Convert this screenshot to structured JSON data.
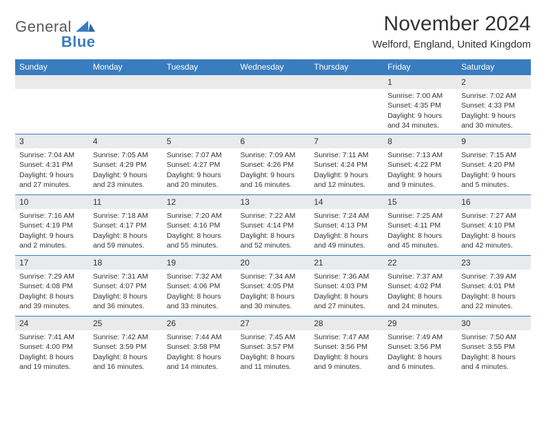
{
  "brand": {
    "name1": "General",
    "name2": "Blue"
  },
  "title": "November 2024",
  "subtitle": "Welford, England, United Kingdom",
  "colors": {
    "header_bg": "#3a7dbf",
    "header_fg": "#ffffff",
    "daynum_bg": "#e9eaeb",
    "border": "#3a7dbf",
    "text": "#333333"
  },
  "day_headers": [
    "Sunday",
    "Monday",
    "Tuesday",
    "Wednesday",
    "Thursday",
    "Friday",
    "Saturday"
  ],
  "weeks": [
    [
      {
        "blank": true
      },
      {
        "blank": true
      },
      {
        "blank": true
      },
      {
        "blank": true
      },
      {
        "blank": true
      },
      {
        "n": "1",
        "sr": "Sunrise: 7:00 AM",
        "ss": "Sunset: 4:35 PM",
        "dl": "Daylight: 9 hours and 34 minutes."
      },
      {
        "n": "2",
        "sr": "Sunrise: 7:02 AM",
        "ss": "Sunset: 4:33 PM",
        "dl": "Daylight: 9 hours and 30 minutes."
      }
    ],
    [
      {
        "n": "3",
        "sr": "Sunrise: 7:04 AM",
        "ss": "Sunset: 4:31 PM",
        "dl": "Daylight: 9 hours and 27 minutes."
      },
      {
        "n": "4",
        "sr": "Sunrise: 7:05 AM",
        "ss": "Sunset: 4:29 PM",
        "dl": "Daylight: 9 hours and 23 minutes."
      },
      {
        "n": "5",
        "sr": "Sunrise: 7:07 AM",
        "ss": "Sunset: 4:27 PM",
        "dl": "Daylight: 9 hours and 20 minutes."
      },
      {
        "n": "6",
        "sr": "Sunrise: 7:09 AM",
        "ss": "Sunset: 4:26 PM",
        "dl": "Daylight: 9 hours and 16 minutes."
      },
      {
        "n": "7",
        "sr": "Sunrise: 7:11 AM",
        "ss": "Sunset: 4:24 PM",
        "dl": "Daylight: 9 hours and 12 minutes."
      },
      {
        "n": "8",
        "sr": "Sunrise: 7:13 AM",
        "ss": "Sunset: 4:22 PM",
        "dl": "Daylight: 9 hours and 9 minutes."
      },
      {
        "n": "9",
        "sr": "Sunrise: 7:15 AM",
        "ss": "Sunset: 4:20 PM",
        "dl": "Daylight: 9 hours and 5 minutes."
      }
    ],
    [
      {
        "n": "10",
        "sr": "Sunrise: 7:16 AM",
        "ss": "Sunset: 4:19 PM",
        "dl": "Daylight: 9 hours and 2 minutes."
      },
      {
        "n": "11",
        "sr": "Sunrise: 7:18 AM",
        "ss": "Sunset: 4:17 PM",
        "dl": "Daylight: 8 hours and 59 minutes."
      },
      {
        "n": "12",
        "sr": "Sunrise: 7:20 AM",
        "ss": "Sunset: 4:16 PM",
        "dl": "Daylight: 8 hours and 55 minutes."
      },
      {
        "n": "13",
        "sr": "Sunrise: 7:22 AM",
        "ss": "Sunset: 4:14 PM",
        "dl": "Daylight: 8 hours and 52 minutes."
      },
      {
        "n": "14",
        "sr": "Sunrise: 7:24 AM",
        "ss": "Sunset: 4:13 PM",
        "dl": "Daylight: 8 hours and 49 minutes."
      },
      {
        "n": "15",
        "sr": "Sunrise: 7:25 AM",
        "ss": "Sunset: 4:11 PM",
        "dl": "Daylight: 8 hours and 45 minutes."
      },
      {
        "n": "16",
        "sr": "Sunrise: 7:27 AM",
        "ss": "Sunset: 4:10 PM",
        "dl": "Daylight: 8 hours and 42 minutes."
      }
    ],
    [
      {
        "n": "17",
        "sr": "Sunrise: 7:29 AM",
        "ss": "Sunset: 4:08 PM",
        "dl": "Daylight: 8 hours and 39 minutes."
      },
      {
        "n": "18",
        "sr": "Sunrise: 7:31 AM",
        "ss": "Sunset: 4:07 PM",
        "dl": "Daylight: 8 hours and 36 minutes."
      },
      {
        "n": "19",
        "sr": "Sunrise: 7:32 AM",
        "ss": "Sunset: 4:06 PM",
        "dl": "Daylight: 8 hours and 33 minutes."
      },
      {
        "n": "20",
        "sr": "Sunrise: 7:34 AM",
        "ss": "Sunset: 4:05 PM",
        "dl": "Daylight: 8 hours and 30 minutes."
      },
      {
        "n": "21",
        "sr": "Sunrise: 7:36 AM",
        "ss": "Sunset: 4:03 PM",
        "dl": "Daylight: 8 hours and 27 minutes."
      },
      {
        "n": "22",
        "sr": "Sunrise: 7:37 AM",
        "ss": "Sunset: 4:02 PM",
        "dl": "Daylight: 8 hours and 24 minutes."
      },
      {
        "n": "23",
        "sr": "Sunrise: 7:39 AM",
        "ss": "Sunset: 4:01 PM",
        "dl": "Daylight: 8 hours and 22 minutes."
      }
    ],
    [
      {
        "n": "24",
        "sr": "Sunrise: 7:41 AM",
        "ss": "Sunset: 4:00 PM",
        "dl": "Daylight: 8 hours and 19 minutes."
      },
      {
        "n": "25",
        "sr": "Sunrise: 7:42 AM",
        "ss": "Sunset: 3:59 PM",
        "dl": "Daylight: 8 hours and 16 minutes."
      },
      {
        "n": "26",
        "sr": "Sunrise: 7:44 AM",
        "ss": "Sunset: 3:58 PM",
        "dl": "Daylight: 8 hours and 14 minutes."
      },
      {
        "n": "27",
        "sr": "Sunrise: 7:45 AM",
        "ss": "Sunset: 3:57 PM",
        "dl": "Daylight: 8 hours and 11 minutes."
      },
      {
        "n": "28",
        "sr": "Sunrise: 7:47 AM",
        "ss": "Sunset: 3:56 PM",
        "dl": "Daylight: 8 hours and 9 minutes."
      },
      {
        "n": "29",
        "sr": "Sunrise: 7:49 AM",
        "ss": "Sunset: 3:56 PM",
        "dl": "Daylight: 8 hours and 6 minutes."
      },
      {
        "n": "30",
        "sr": "Sunrise: 7:50 AM",
        "ss": "Sunset: 3:55 PM",
        "dl": "Daylight: 8 hours and 4 minutes."
      }
    ]
  ]
}
